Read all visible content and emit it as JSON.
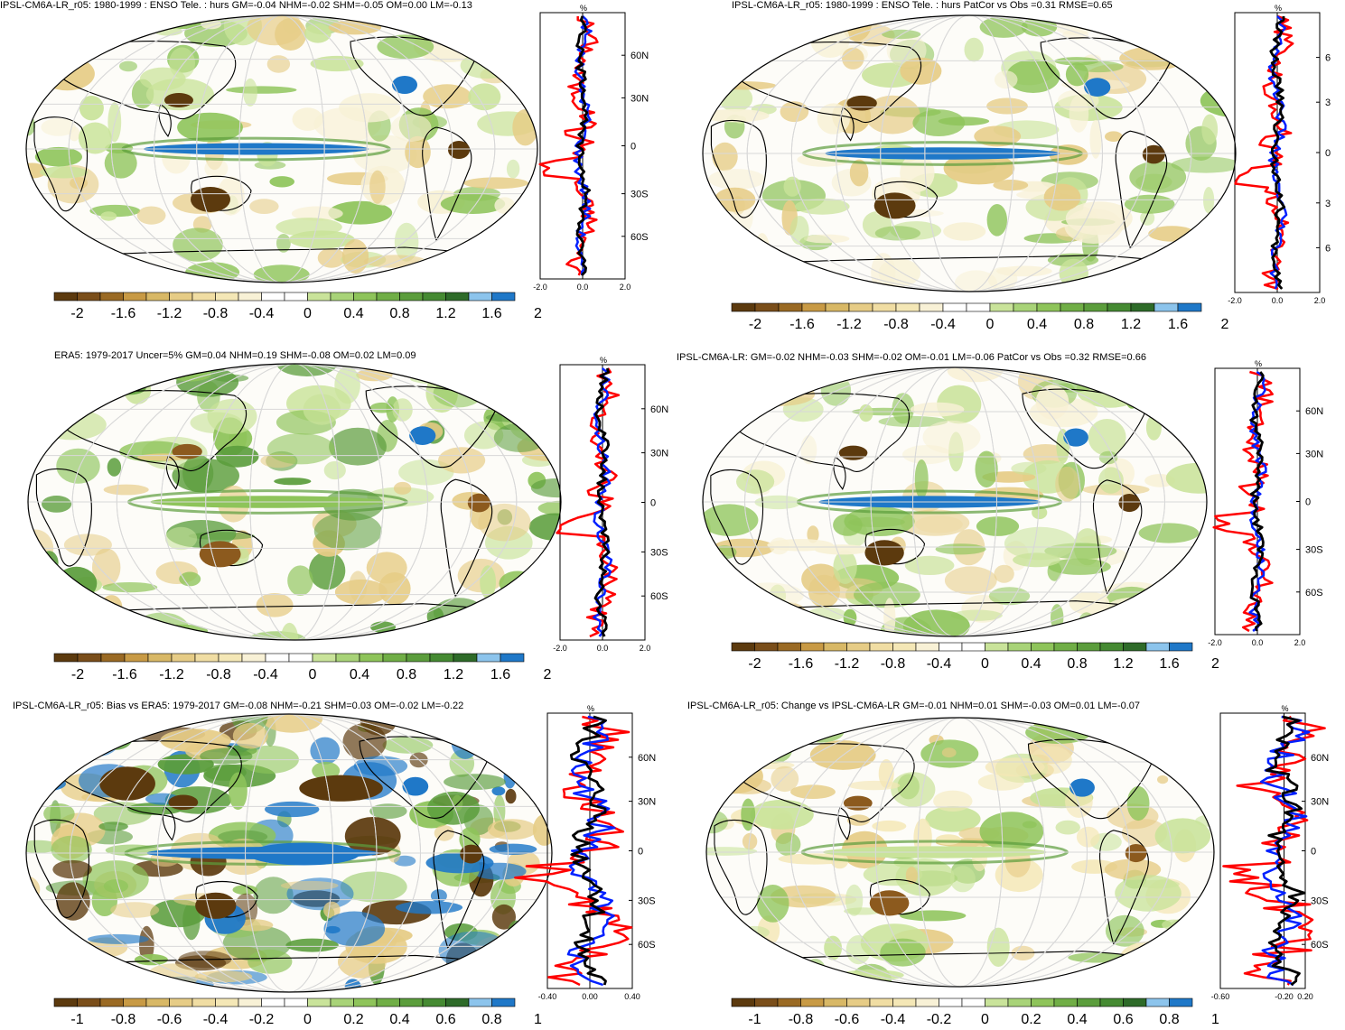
{
  "colors": {
    "brown_dark": "#5c3a0e",
    "brown": "#8c5a1e",
    "tan": "#c89a45",
    "wheat": "#e6cc86",
    "cream": "#f4e7b6",
    "light_cream": "#f8f1d6",
    "white": "#ffffff",
    "light_green": "#c9e39a",
    "green": "#8ec45a",
    "mid_green": "#5b9d3c",
    "dark_green": "#2e6b29",
    "light_blue": "#8cc4ec",
    "blue": "#1f78c8",
    "ocean_grid": "#d8d8d8",
    "profile_model": "#0020ff",
    "profile_obs": "#ff0000",
    "profile_mean": "#000000"
  },
  "colorbar_colors": [
    "#5c3a0e",
    "#7a4e1a",
    "#9a6a24",
    "#c89a45",
    "#d8b866",
    "#e6cc86",
    "#f0dda3",
    "#f4e7b6",
    "#f8f1d6",
    "#ffffff",
    "#ffffff",
    "#c9e39a",
    "#a8d378",
    "#8ec45a",
    "#70ae46",
    "#5b9d3c",
    "#458a32",
    "#2e6b29",
    "#8cc4ec",
    "#1f78c8"
  ],
  "panels": [
    {
      "id": "p1",
      "title": "IPSL-CM6A-LR_r05: 1980-1999 : ENSO Tele. : hurs GM=-0.04 NHM=-0.02 SHM=-0.05 OM=0.00 LM=-0.13",
      "unit": "%",
      "lat_labels": [
        "60N",
        "30N",
        "0",
        "30S",
        "60S"
      ],
      "x_ticks": [
        "-2.0",
        "0.0",
        "2.0"
      ],
      "cbar_labels": [
        "-2",
        "-1.6",
        "-1.2",
        "-0.8",
        "-0.4",
        "0",
        "0.4",
        "0.8",
        "1.2",
        "1.6",
        "2"
      ]
    },
    {
      "id": "p2",
      "title": "IPSL-CM6A-LR_r05: 1980-1999 : ENSO Tele. : hurs PatCor vs Obs =0.31 RMSE=0.65",
      "unit": "%",
      "lat_labels": [
        "6",
        "3",
        "0",
        "3",
        "6"
      ],
      "x_ticks": [
        "-2.0",
        "0.0",
        "2.0"
      ],
      "cbar_labels": [
        "-2",
        "-1.6",
        "-1.2",
        "-0.8",
        "-0.4",
        "0",
        "0.4",
        "0.8",
        "1.2",
        "1.6",
        "2"
      ]
    },
    {
      "id": "p3",
      "title": "ERA5: 1979-2017 Uncer=5% GM=0.04 NHM=0.19 SHM=-0.08 OM=0.02 LM=0.09",
      "unit": "%",
      "lat_labels": [
        "60N",
        "30N",
        "0",
        "30S",
        "60S"
      ],
      "x_ticks": [
        "-2.0",
        "0.0",
        "2.0"
      ],
      "cbar_labels": [
        "-2",
        "-1.6",
        "-1.2",
        "-0.8",
        "-0.4",
        "0",
        "0.4",
        "0.8",
        "1.2",
        "1.6",
        "2"
      ]
    },
    {
      "id": "p4",
      "title": "IPSL-CM6A-LR: GM=-0.02 NHM=-0.03 SHM=-0.02 OM=-0.01 LM=-0.06 PatCor vs Obs =0.32 RMSE=0.66",
      "unit": "%",
      "lat_labels": [
        "60N",
        "30N",
        "0",
        "30S",
        "60S"
      ],
      "x_ticks": [
        "-2.0",
        "0.0",
        "2.0"
      ],
      "cbar_labels": [
        "-2",
        "-1.6",
        "-1.2",
        "-0.8",
        "-0.4",
        "0",
        "0.4",
        "0.8",
        "1.2",
        "1.6",
        "2"
      ]
    },
    {
      "id": "p5",
      "title": "IPSL-CM6A-LR_r05: Bias vs ERA5: 1979-2017 GM=-0.08 NHM=-0.21 SHM=0.03 OM=-0.02 LM=-0.22",
      "unit": "%",
      "lat_labels": [
        "60N",
        "30N",
        "0",
        "30S",
        "60S"
      ],
      "x_ticks": [
        "-0.40",
        "0.00",
        "0.40"
      ],
      "cbar_labels": [
        "-1",
        "-0.8",
        "-0.6",
        "-0.4",
        "-0.2",
        "0",
        "0.2",
        "0.4",
        "0.6",
        "0.8",
        "1"
      ]
    },
    {
      "id": "p6",
      "title": "IPSL-CM6A-LR_r05: Change vs IPSL-CM6A-LR GM=-0.01 NHM=0.01 SHM=-0.03 OM=0.01 LM=-0.07",
      "unit": "%",
      "lat_labels": [
        "60N",
        "30N",
        "0",
        "30S",
        "60S"
      ],
      "x_ticks": [
        "-0.60",
        "-0.20",
        "0.20"
      ],
      "cbar_labels": [
        "-1",
        "-0.8",
        "-0.6",
        "-0.4",
        "-0.2",
        "0",
        "0.2",
        "0.4",
        "0.6",
        "0.8",
        "1"
      ]
    }
  ],
  "chart_data": [
    {
      "type": "heatmap",
      "title": "IPSL-CM6A-LR_r05: 1980-1999 : ENSO Tele. : hurs GM=-0.04 NHM=-0.02 SHM=-0.05 OM=0.00 LM=-0.13",
      "colorbar_range": [
        -2,
        2
      ],
      "profile": {
        "type": "line",
        "x_range": [
          -2.0,
          2.0
        ],
        "y_labels": [
          "60N",
          "30N",
          "0",
          "30S",
          "60S"
        ]
      }
    },
    {
      "type": "heatmap",
      "title": "IPSL-CM6A-LR_r05: 1980-1999 : ENSO Tele. : hurs PatCor vs Obs =0.31 RMSE=0.65",
      "colorbar_range": [
        -2,
        2
      ],
      "profile": {
        "type": "line",
        "x_range": [
          -2.0,
          2.0
        ]
      }
    },
    {
      "type": "heatmap",
      "title": "ERA5: 1979-2017 Uncer=5% GM=0.04 NHM=0.19 SHM=-0.08 OM=0.02 LM=0.09",
      "colorbar_range": [
        -2,
        2
      ],
      "profile": {
        "type": "line",
        "x_range": [
          -2.0,
          2.0
        ]
      }
    },
    {
      "type": "heatmap",
      "title": "IPSL-CM6A-LR: GM=-0.02 NHM=-0.03 SHM=-0.02 OM=-0.01 LM=-0.06 PatCor vs Obs =0.32 RMSE=0.66",
      "colorbar_range": [
        -2,
        2
      ],
      "profile": {
        "type": "line",
        "x_range": [
          -2.0,
          2.0
        ]
      }
    },
    {
      "type": "heatmap",
      "title": "IPSL-CM6A-LR_r05: Bias vs ERA5: 1979-2017 GM=-0.08 NHM=-0.21 SHM=0.03 OM=-0.02 LM=-0.22",
      "colorbar_range": [
        -1,
        1
      ],
      "profile": {
        "type": "line",
        "x_range": [
          -0.4,
          0.4
        ]
      }
    },
    {
      "type": "heatmap",
      "title": "IPSL-CM6A-LR_r05: Change vs IPSL-CM6A-LR GM=-0.01 NHM=0.01 SHM=-0.03 OM=0.01 LM=-0.07",
      "colorbar_range": [
        -1,
        1
      ],
      "profile": {
        "type": "line",
        "x_range": [
          -0.6,
          0.2
        ]
      }
    }
  ]
}
